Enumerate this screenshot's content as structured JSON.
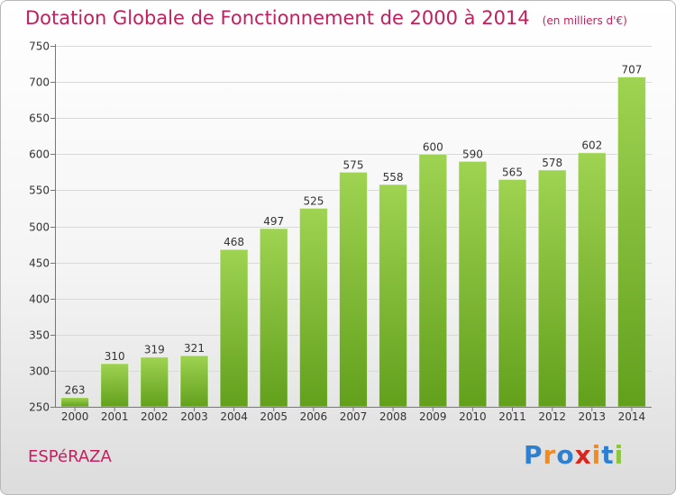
{
  "header": {
    "title": "Dotation Globale de Fonctionnement de 2000 à 2014",
    "subtitle": "(en milliers d'€)"
  },
  "commune": "ESPéRAZA",
  "logo": {
    "text": "Proxiti",
    "letters": [
      "P",
      "r",
      "o",
      "x",
      "i",
      "t",
      "i"
    ],
    "letter_colors": [
      "#2f7fd0",
      "#f18b1e",
      "#2f7fd0",
      "#d9261c",
      "#f18b1e",
      "#2f7fd0",
      "#8cc63f"
    ]
  },
  "colors": {
    "title": "#c0205e",
    "bar_top": "#9fd352",
    "bar_bottom": "#62a01c",
    "grid": "#d9d9d9"
  },
  "chart_data": {
    "type": "bar",
    "categories": [
      "2000",
      "2001",
      "2002",
      "2003",
      "2004",
      "2005",
      "2006",
      "2007",
      "2008",
      "2009",
      "2010",
      "2011",
      "2012",
      "2013",
      "2014"
    ],
    "values": [
      263,
      310,
      319,
      321,
      468,
      497,
      525,
      575,
      558,
      600,
      590,
      565,
      578,
      602,
      707
    ],
    "ylim": [
      250,
      750
    ],
    "yticks": [
      250,
      300,
      350,
      400,
      450,
      500,
      550,
      600,
      650,
      700,
      750
    ],
    "grid": true,
    "data_labels": true
  }
}
